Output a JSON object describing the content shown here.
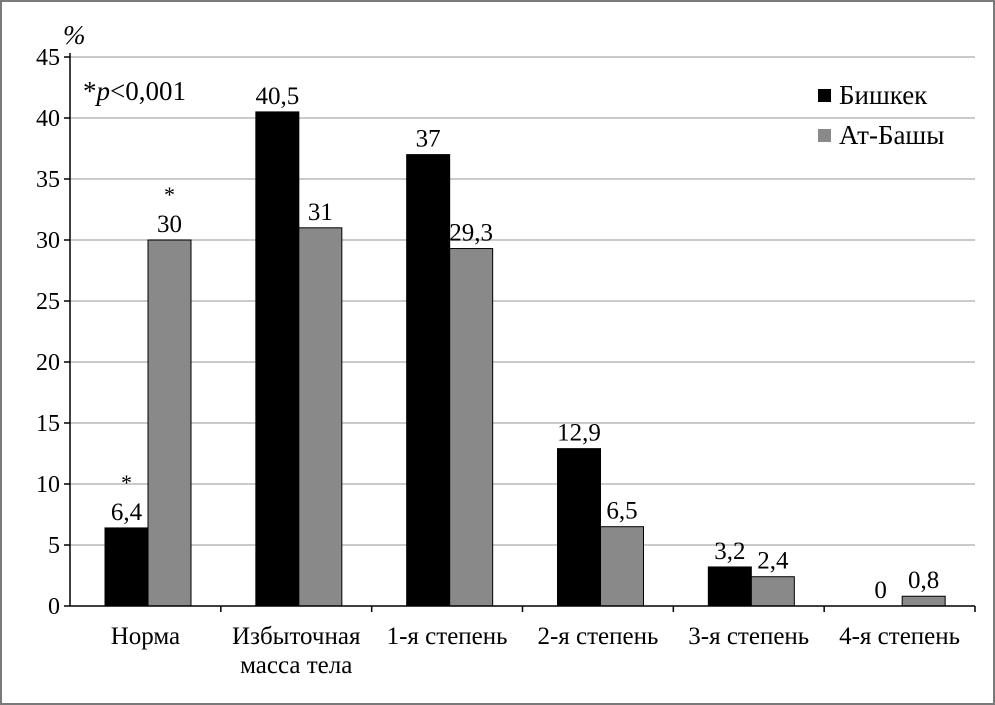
{
  "chart_data": {
    "type": "bar",
    "ylabel": "%",
    "ylim": [
      0,
      45
    ],
    "yticks": [
      "0",
      "5",
      "10",
      "15",
      "20",
      "25",
      "30",
      "35",
      "40",
      "45"
    ],
    "grid": true,
    "legend_position": "top-right",
    "categories": [
      [
        "Норма"
      ],
      [
        "Избыточная",
        "масса тела"
      ],
      [
        "1-я степень"
      ],
      [
        "2-я степень"
      ],
      [
        "3-я степень"
      ],
      [
        "4-я степень"
      ]
    ],
    "series": [
      {
        "name": "Бишкек",
        "color": "#000000",
        "values": [
          6.4,
          40.5,
          37,
          12.9,
          3.2,
          0
        ],
        "labels": [
          "6,4",
          "40,5",
          "37",
          "12,9",
          "3,2",
          "0"
        ],
        "marks": [
          "*",
          "",
          "",
          "",
          "",
          ""
        ]
      },
      {
        "name": "Ат-Башы",
        "color": "#898989",
        "values": [
          30,
          31,
          29.3,
          6.5,
          2.4,
          0.8
        ],
        "labels": [
          "30",
          "31",
          "29,3",
          "6,5",
          "2,4",
          "0,8"
        ],
        "marks": [
          "*",
          "",
          "",
          "",
          "",
          ""
        ]
      }
    ],
    "annotation": {
      "prefix": "*",
      "italic": "p",
      "rest": "<0,001"
    }
  }
}
